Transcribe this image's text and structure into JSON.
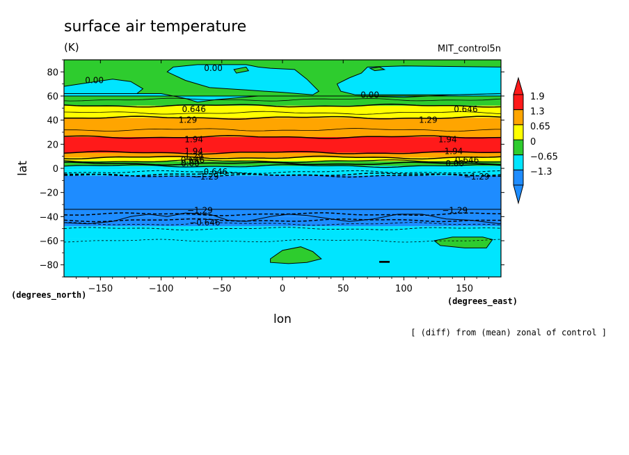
{
  "chart_data": {
    "type": "heatmap",
    "title": "surface air temperature",
    "units": "(K)",
    "dataset": "MIT_control5n",
    "xlabel": "lon",
    "ylabel": "lat",
    "x_unit_label": "(degrees_east)",
    "y_unit_label": "(degrees_north)",
    "note": "[ (diff) from (mean) zonal of control ]",
    "xlim": [
      -180,
      180
    ],
    "ylim": [
      -90,
      90
    ],
    "x_ticks": [
      -150,
      -100,
      -50,
      0,
      50,
      100,
      150
    ],
    "x_tick_labels": [
      "−150",
      "−100",
      "−50",
      "0",
      "50",
      "100",
      "150"
    ],
    "y_ticks": [
      -80,
      -60,
      -40,
      -20,
      0,
      20,
      40,
      60,
      80
    ],
    "y_tick_labels": [
      "−80",
      "−60",
      "−40",
      "−20",
      "0",
      "20",
      "40",
      "60",
      "80"
    ],
    "grid": false,
    "colorbar": {
      "placement": "right",
      "levels": [
        -1.3,
        -0.65,
        0,
        0.65,
        1.3,
        1.9
      ],
      "labels": [
        "−1.3",
        "−0.65",
        "0",
        "0.65",
        "1.3",
        "1.9"
      ],
      "colors": [
        "#1e8cff",
        "#00e5ff",
        "#2ecc2e",
        "#ffff00",
        "#ffa500",
        "#ff1a1a"
      ],
      "under_color": "#1e8cff",
      "over_color": "#ff1a1a"
    },
    "zonal_bands": [
      {
        "lat": [
          -90,
          -58
        ],
        "color": "#00e5ff"
      },
      {
        "lat": [
          -58,
          -48
        ],
        "color": "#00e5ff"
      },
      {
        "lat": [
          -48,
          -40
        ],
        "color": "#1e8cff"
      },
      {
        "lat": [
          -40,
          -6
        ],
        "color": "#1e8cff"
      },
      {
        "lat": [
          -6,
          -1
        ],
        "color": "#00e5ff"
      },
      {
        "lat": [
          -1,
          2
        ],
        "color": "#00e5ff"
      },
      {
        "lat": [
          2,
          6
        ],
        "color": "#2ecc2e"
      },
      {
        "lat": [
          6,
          9
        ],
        "color": "#ffff00"
      },
      {
        "lat": [
          9,
          13
        ],
        "color": "#ffa500"
      },
      {
        "lat": [
          13,
          26
        ],
        "color": "#ff1a1a"
      },
      {
        "lat": [
          26,
          42
        ],
        "color": "#ffa500"
      },
      {
        "lat": [
          42,
          52
        ],
        "color": "#ffff00"
      },
      {
        "lat": [
          52,
          62
        ],
        "color": "#2ecc2e"
      },
      {
        "lat": [
          62,
          90
        ],
        "color": "#2ecc2e"
      }
    ],
    "patches": [
      {
        "color": "#00e5ff",
        "points": [
          [
            -180,
            68
          ],
          [
            -160,
            71
          ],
          [
            -140,
            74
          ],
          [
            -125,
            72
          ],
          [
            -115,
            66
          ],
          [
            -120,
            62
          ],
          [
            -180,
            62
          ]
        ]
      },
      {
        "color": "#00e5ff",
        "points": [
          [
            -180,
            62
          ],
          [
            -120,
            62
          ],
          [
            -100,
            62
          ],
          [
            -80,
            58
          ],
          [
            -70,
            55
          ],
          [
            -55,
            57
          ],
          [
            -20,
            60
          ],
          [
            25,
            60
          ],
          [
            60,
            60
          ],
          [
            100,
            59
          ],
          [
            140,
            61
          ],
          [
            180,
            62
          ],
          [
            180,
            60
          ],
          [
            -180,
            60
          ]
        ]
      },
      {
        "color": "#00e5ff",
        "points": [
          [
            -90,
            84
          ],
          [
            -70,
            86
          ],
          [
            -30,
            86
          ],
          [
            -20,
            84
          ],
          [
            -10,
            83
          ],
          [
            10,
            82
          ],
          [
            20,
            74
          ],
          [
            30,
            64
          ],
          [
            25,
            61
          ],
          [
            0,
            63
          ],
          [
            -30,
            65
          ],
          [
            -60,
            67
          ],
          [
            -80,
            73
          ],
          [
            -95,
            80
          ]
        ]
      },
      {
        "color": "#00e5ff",
        "points": [
          [
            45,
            70
          ],
          [
            55,
            75
          ],
          [
            65,
            79
          ],
          [
            70,
            84
          ],
          [
            100,
            85
          ],
          [
            180,
            84
          ],
          [
            180,
            62
          ],
          [
            140,
            61
          ],
          [
            100,
            61
          ],
          [
            60,
            61
          ],
          [
            48,
            64
          ]
        ]
      },
      {
        "color": "#2ecc2e",
        "points": [
          [
            -40,
            82
          ],
          [
            -30,
            84
          ],
          [
            -28,
            81
          ],
          [
            -38,
            79
          ]
        ]
      },
      {
        "color": "#2ecc2e",
        "points": [
          [
            72,
            83
          ],
          [
            80,
            84
          ],
          [
            84,
            82
          ],
          [
            76,
            81
          ]
        ]
      },
      {
        "color": "#1e8cff",
        "points": [
          [
            -180,
            -45
          ],
          [
            -160,
            -46
          ],
          [
            -140,
            -44
          ],
          [
            -125,
            -40
          ],
          [
            -110,
            -38
          ],
          [
            -95,
            -40
          ],
          [
            -80,
            -37
          ],
          [
            -60,
            -38
          ],
          [
            -45,
            -43
          ],
          [
            -30,
            -44
          ],
          [
            -10,
            -40
          ],
          [
            5,
            -38
          ],
          [
            20,
            -39
          ],
          [
            40,
            -42
          ],
          [
            55,
            -44
          ],
          [
            75,
            -42
          ],
          [
            95,
            -38
          ],
          [
            115,
            -38
          ],
          [
            135,
            -42
          ],
          [
            155,
            -43
          ],
          [
            180,
            -46
          ],
          [
            180,
            -34
          ],
          [
            -180,
            -34
          ]
        ]
      },
      {
        "color": "#2ecc2e",
        "points": [
          [
            -10,
            -75
          ],
          [
            0,
            -68
          ],
          [
            15,
            -65
          ],
          [
            25,
            -69
          ],
          [
            32,
            -75
          ],
          [
            20,
            -78
          ],
          [
            5,
            -79
          ],
          [
            -10,
            -78
          ]
        ]
      },
      {
        "color": "#2ecc2e",
        "points": [
          [
            125,
            -60
          ],
          [
            140,
            -57
          ],
          [
            165,
            -57
          ],
          [
            173,
            -59
          ],
          [
            168,
            -66
          ],
          [
            150,
            -66
          ],
          [
            130,
            -64
          ]
        ]
      },
      {
        "color": "#000000",
        "points": [
          [
            80,
            -77
          ],
          [
            88,
            -77
          ],
          [
            88,
            -78
          ],
          [
            80,
            -78
          ]
        ]
      }
    ],
    "contour_lines": [
      {
        "lat": -60,
        "dash": "3,3",
        "width": 0.8
      },
      {
        "lat": -50,
        "dash": "4,3",
        "width": 0.9
      },
      {
        "lat": -46,
        "dash": "4,3",
        "width": 0.9
      },
      {
        "lat": -43,
        "dash": "5,3",
        "width": 1.5
      },
      {
        "lat": -38,
        "dash": "5,3",
        "width": 1.5
      },
      {
        "lat": -6,
        "dash": "5,3",
        "width": 1.5
      },
      {
        "lat": -5,
        "dash": "5,3",
        "width": 1.5
      },
      {
        "lat": -3,
        "dash": "4,3",
        "width": 1.0
      },
      {
        "lat": 2,
        "dash": "",
        "width": 1.2
      },
      {
        "lat": 4,
        "dash": "",
        "width": 1.5
      },
      {
        "lat": 6,
        "dash": "",
        "width": 1.2
      },
      {
        "lat": 9,
        "dash": "",
        "width": 1.5
      },
      {
        "lat": 13,
        "dash": "",
        "width": 1.5
      },
      {
        "lat": 26,
        "dash": "",
        "width": 1.5
      },
      {
        "lat": 32,
        "dash": "",
        "width": 0.8
      },
      {
        "lat": 42,
        "dash": "",
        "width": 1.5
      },
      {
        "lat": 46,
        "dash": "",
        "width": 0.8
      },
      {
        "lat": 52,
        "dash": "",
        "width": 1.5
      },
      {
        "lat": 57,
        "dash": "",
        "width": 0.8
      }
    ],
    "contour_labels": [
      {
        "text": "0.00",
        "lon": -155,
        "lat": 73
      },
      {
        "text": "0.00",
        "lon": -57,
        "lat": 83
      },
      {
        "text": "0.00",
        "lon": 72,
        "lat": 61
      },
      {
        "text": "0.646",
        "lon": -73,
        "lat": 49
      },
      {
        "text": "0.646",
        "lon": 151,
        "lat": 49
      },
      {
        "text": "1.29",
        "lon": -78,
        "lat": 40
      },
      {
        "text": "1.29",
        "lon": 120,
        "lat": 40
      },
      {
        "text": "1.94",
        "lon": -73,
        "lat": 24
      },
      {
        "text": "1.94",
        "lon": 136,
        "lat": 24
      },
      {
        "text": "1.94",
        "lon": -73,
        "lat": 14
      },
      {
        "text": "1.94",
        "lon": 141,
        "lat": 14
      },
      {
        "text": "1.29",
        "lon": -73,
        "lat": 10
      },
      {
        "text": "0.646",
        "lon": -74,
        "lat": 7
      },
      {
        "text": "0.00",
        "lon": -76,
        "lat": 4
      },
      {
        "text": "0.00",
        "lon": 142,
        "lat": 4
      },
      {
        "text": "0.646",
        "lon": 152,
        "lat": 7
      },
      {
        "text": "−0.646",
        "lon": -58,
        "lat": -3
      },
      {
        "text": "−1.29",
        "lon": -63,
        "lat": -7
      },
      {
        "text": "−1.29",
        "lon": 160,
        "lat": -7
      },
      {
        "text": "−1.29",
        "lon": -68,
        "lat": -35
      },
      {
        "text": "−1.29",
        "lon": 142,
        "lat": -35
      },
      {
        "text": "−0.646",
        "lon": -64,
        "lat": -45
      }
    ]
  }
}
